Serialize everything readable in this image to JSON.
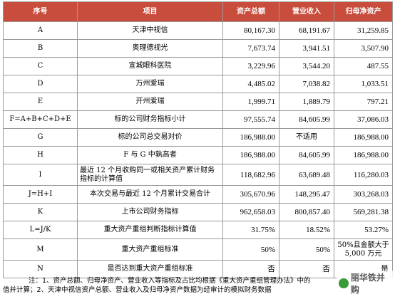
{
  "headers": [
    "序号",
    "项目",
    "资产总额",
    "营业收入",
    "归母净资产"
  ],
  "rows": [
    {
      "seq": "A",
      "item": "天津中视信",
      "assets": "80,167.30",
      "revenue": "68,191.67",
      "net_assets": "31,259.85"
    },
    {
      "seq": "B",
      "item": "奥理德视光",
      "assets": "7,673.74",
      "revenue": "3,941.51",
      "net_assets": "3,507.90"
    },
    {
      "seq": "C",
      "item": "宣城眼科医院",
      "assets": "3,229.96",
      "revenue": "3,544.20",
      "net_assets": "487.55"
    },
    {
      "seq": "D",
      "item": "万州爱瑞",
      "assets": "4,485.02",
      "revenue": "7,038.82",
      "net_assets": "1,033.51"
    },
    {
      "seq": "E",
      "item": "开州爱瑞",
      "assets": "1,999.71",
      "revenue": "1,889.79",
      "net_assets": "797.21"
    },
    {
      "seq": "F=A+B+C+D+E",
      "item": "标的公司财务指标小计",
      "assets": "97,555.74",
      "revenue": "84,605.99",
      "net_assets": "37,086.03"
    },
    {
      "seq": "G",
      "item": "标的公司总交易对价",
      "assets": "186,988.00",
      "revenue": "不适用",
      "net_assets": "186,988.00"
    },
    {
      "seq": "H",
      "item": "F 与 G 中孰高者",
      "assets": "186,988.00",
      "revenue": "84,605.99",
      "net_assets": "186,988.00"
    },
    {
      "seq": "I",
      "item": "最近 12 个月收购同一或相关资产累计财务指标的计算值",
      "assets": "118,682.96",
      "revenue": "63,689.48",
      "net_assets": "116,280.03"
    },
    {
      "seq": "J=H+I",
      "item": "本次交易与最近 12 个月累计交易合计",
      "assets": "305,670.96",
      "revenue": "148,295.47",
      "net_assets": "303,268.03"
    },
    {
      "seq": "K",
      "item": "上市公司财务指标",
      "assets": "962,658.03",
      "revenue": "800,857.40",
      "net_assets": "569,281.38"
    },
    {
      "seq": "L=J/K",
      "item": "重大资产重组判断指标计算值",
      "assets": "31.75%",
      "revenue": "18.52%",
      "net_assets": "53.27%"
    },
    {
      "seq": "M",
      "item": "重大资产重组标准",
      "assets": "50%",
      "revenue": "50%",
      "net_assets": "50%且金额大于5,000 万元"
    },
    {
      "seq": "N",
      "item": "是否达到重大资产重组标准",
      "assets": "否",
      "revenue": "否",
      "net_assets": "是"
    }
  ],
  "note_line1": "注：1、资产总额、归母净资产、营业收入等指标及占比均根据《重大资产重组管理办法》中的",
  "note_line2": "值并计算；2、天津中视信资产总额、营业收入及归母净资产数据为经审计的模拟财务数据",
  "watermark": "丽华铁并购"
}
